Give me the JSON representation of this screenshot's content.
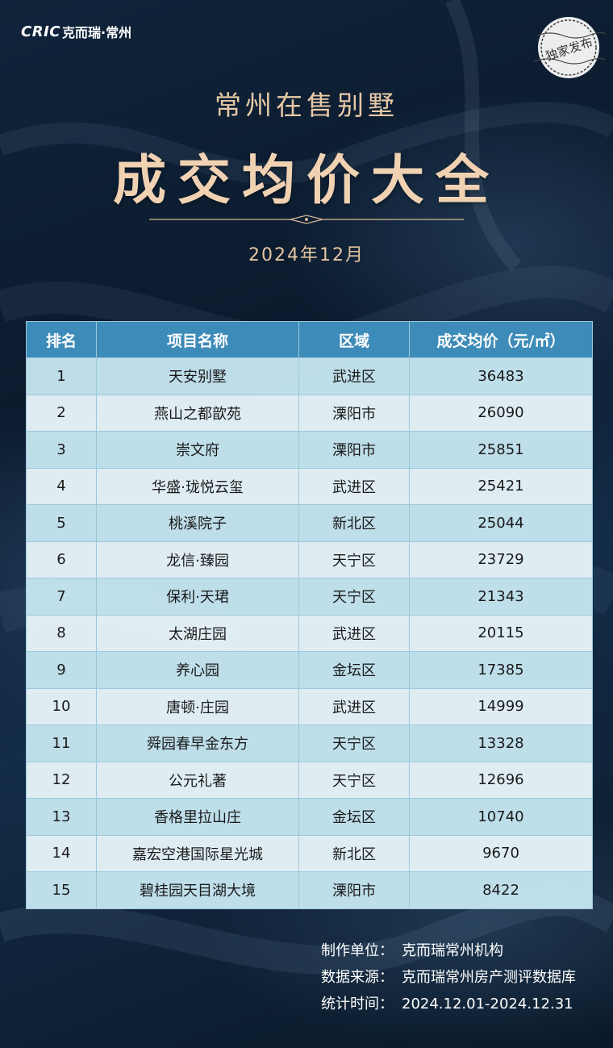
{
  "brand": {
    "mark": "CRIC",
    "name": "克而瑞·常州"
  },
  "stamp": {
    "text": "独家发布"
  },
  "header": {
    "subtitle": "常州在售别墅",
    "title": "成交均价大全",
    "date": "2024年12月"
  },
  "table": {
    "columns": [
      "排名",
      "项目名称",
      "区域",
      "成交均价（元/㎡）"
    ],
    "rows": [
      [
        "1",
        "天安别墅",
        "武进区",
        "36483"
      ],
      [
        "2",
        "燕山之都歆苑",
        "溧阳市",
        "26090"
      ],
      [
        "3",
        "崇文府",
        "溧阳市",
        "25851"
      ],
      [
        "4",
        "华盛·珑悦云玺",
        "武进区",
        "25421"
      ],
      [
        "5",
        "桃溪院子",
        "新北区",
        "25044"
      ],
      [
        "6",
        "龙信·臻园",
        "天宁区",
        "23729"
      ],
      [
        "7",
        "保利·天珺",
        "天宁区",
        "21343"
      ],
      [
        "8",
        "太湖庄园",
        "武进区",
        "20115"
      ],
      [
        "9",
        "养心园",
        "金坛区",
        "17385"
      ],
      [
        "10",
        "唐顿·庄园",
        "武进区",
        "14999"
      ],
      [
        "11",
        "舜园春早金东方",
        "天宁区",
        "13328"
      ],
      [
        "12",
        "公元礼著",
        "天宁区",
        "12696"
      ],
      [
        "13",
        "香格里拉山庄",
        "金坛区",
        "10740"
      ],
      [
        "14",
        "嘉宏空港国际星光城",
        "新北区",
        "9670"
      ],
      [
        "15",
        "碧桂园天目湖大境",
        "溧阳市",
        "8422"
      ]
    ]
  },
  "footer": {
    "producer_label": "制作单位：",
    "producer": "克而瑞常州机构",
    "source_label": "数据来源：",
    "source": "克而瑞常州房产测评数据库",
    "period_label": "统计时间：",
    "period": "2024.12.01-2024.12.31"
  },
  "colors": {
    "background": "#0f2236",
    "gold": "#f0d2b2",
    "table_header": "#3d8bb8",
    "row_light": "#e6f4f9",
    "row_dark": "#c4e4f0"
  },
  "icons": {
    "divider": "ornament-divider-icon",
    "stamp": "postmark-stamp-icon"
  }
}
